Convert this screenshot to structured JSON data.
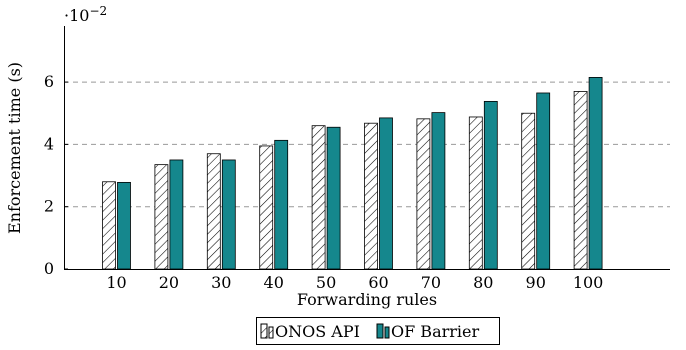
{
  "chart_data": {
    "type": "bar",
    "title": "",
    "xlabel": "Forwarding rules",
    "ylabel": "Enforcement time (s)",
    "y_multiplier_label": "·10",
    "y_multiplier_exponent": "−2",
    "categories": [
      "10",
      "20",
      "30",
      "40",
      "50",
      "60",
      "70",
      "80",
      "90",
      "100"
    ],
    "ylim": [
      0,
      7.8
    ],
    "yticks": [
      0,
      2,
      4,
      6
    ],
    "grid": "horizontal dashed",
    "legend_position": "bottom",
    "series": [
      {
        "name": "ONOS API",
        "values": [
          2.8,
          3.35,
          3.7,
          3.95,
          4.6,
          4.68,
          4.82,
          4.88,
          5.0,
          5.7
        ],
        "color": "#ffffff",
        "pattern": "hatched"
      },
      {
        "name": "OF Barrier",
        "values": [
          2.78,
          3.5,
          3.5,
          4.13,
          4.55,
          4.85,
          5.02,
          5.38,
          5.65,
          6.15
        ],
        "color": "#15878d",
        "pattern": "solid"
      }
    ]
  }
}
